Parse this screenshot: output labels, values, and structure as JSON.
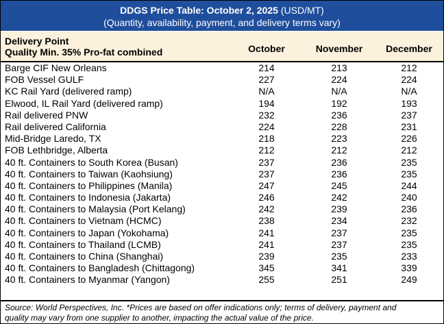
{
  "title": {
    "bold": "DDGS Price Table: October 2, 2025",
    "unit": " (USD/MT)",
    "subtitle": "(Quantity, availability, payment, and delivery terms vary)"
  },
  "header": {
    "line1": "Delivery Point",
    "line2": "Quality Min. 35% Pro-fat combined",
    "columns": [
      "October",
      "November",
      "December"
    ]
  },
  "rows": [
    {
      "name": "Barge CIF New Orleans",
      "values": [
        "214",
        "213",
        "212"
      ]
    },
    {
      "name": "FOB Vessel GULF",
      "values": [
        "227",
        "224",
        "224"
      ]
    },
    {
      "name": "KC Rail Yard (delivered ramp)",
      "values": [
        "N/A",
        "N/A",
        "N/A"
      ]
    },
    {
      "name": "Elwood, IL Rail Yard (delivered ramp)",
      "values": [
        "194",
        "192",
        "193"
      ]
    },
    {
      "name": "Rail delivered PNW",
      "values": [
        "232",
        "236",
        "237"
      ]
    },
    {
      "name": "Rail delivered California",
      "values": [
        "224",
        "228",
        "231"
      ]
    },
    {
      "name": "Mid-Bridge Laredo, TX",
      "values": [
        "218",
        "223",
        "226"
      ]
    },
    {
      "name": "FOB Lethbridge, Alberta",
      "values": [
        "212",
        "212",
        "212"
      ]
    },
    {
      "name": "40 ft. Containers to South Korea (Busan)",
      "values": [
        "237",
        "236",
        "235"
      ]
    },
    {
      "name": "40 ft. Containers to Taiwan (Kaohsiung)",
      "values": [
        "237",
        "236",
        "235"
      ]
    },
    {
      "name": "40 ft. Containers to Philippines (Manila)",
      "values": [
        "247",
        "245",
        "244"
      ]
    },
    {
      "name": "40 ft. Containers to Indonesia (Jakarta)",
      "values": [
        "246",
        "242",
        "240"
      ]
    },
    {
      "name": "40 ft. Containers to Malaysia (Port Kelang)",
      "values": [
        "242",
        "239",
        "236"
      ]
    },
    {
      "name": "40 ft. Containers to Vietnam (HCMC)",
      "values": [
        "238",
        "234",
        "232"
      ]
    },
    {
      "name": "40 ft. Containers to Japan (Yokohama)",
      "values": [
        "241",
        "237",
        "235"
      ]
    },
    {
      "name": "40 ft. Containers to Thailand (LCMB)",
      "values": [
        "241",
        "237",
        "235"
      ]
    },
    {
      "name": "40 ft. Containers to China (Shanghai)",
      "values": [
        "239",
        "235",
        "233"
      ]
    },
    {
      "name": "40 ft. Containers to Bangladesh (Chittagong)",
      "values": [
        "345",
        "341",
        "339"
      ]
    },
    {
      "name": "40 ft. Containers to Myanmar (Yangon)",
      "values": [
        "255",
        "251",
        "249"
      ]
    }
  ],
  "footer": {
    "line1": "Source: World Perspectives, Inc. *Prices are based on offer indications only; terms of delivery, payment and",
    "line2": "quality may vary from one supplier to another, impacting the actual value of the price."
  },
  "colors": {
    "title_bg": "#1f4e9c",
    "header_bg": "#fbf1dc"
  }
}
